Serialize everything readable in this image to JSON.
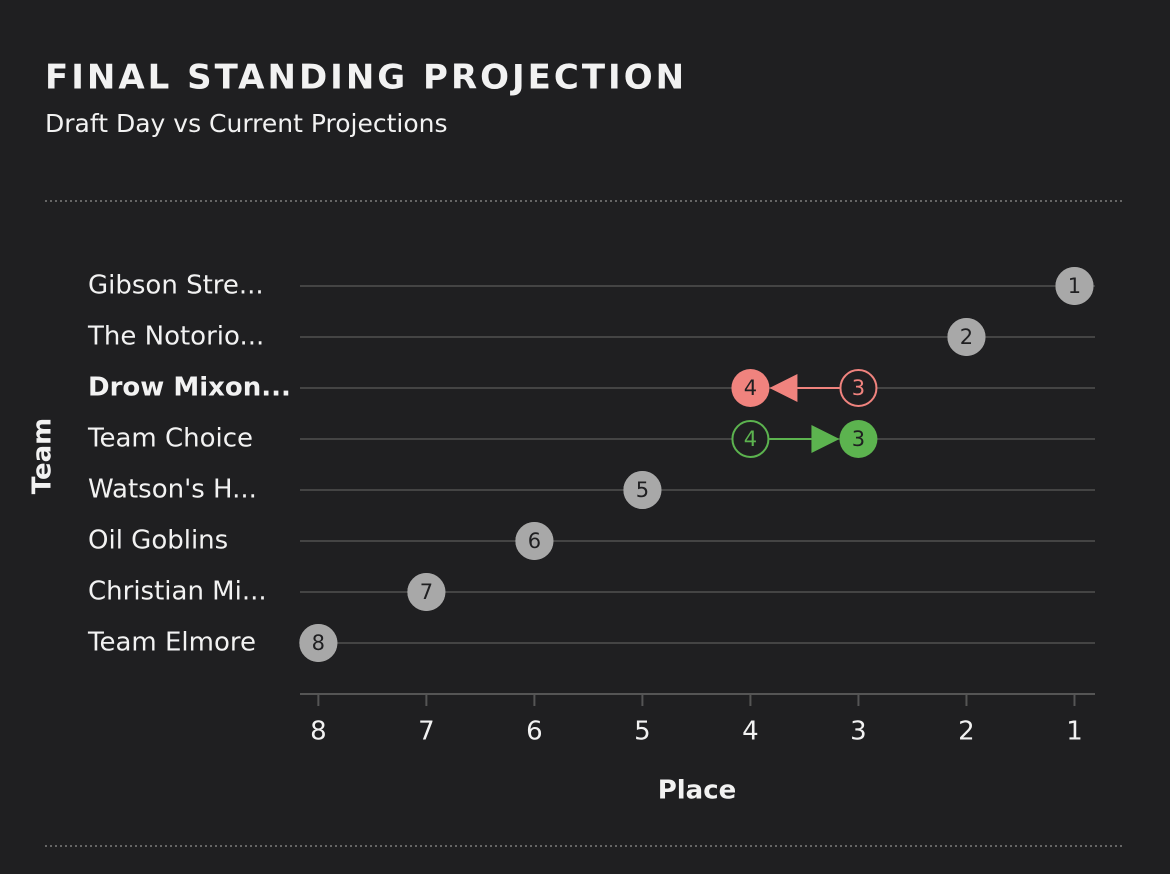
{
  "chart_data": {
    "type": "dumbbell",
    "title": "FINAL STANDING PROJECTION",
    "subtitle": "Draft Day vs Current Projections",
    "x_label": "Place",
    "y_label": "Team",
    "categories": [
      "Gibson Stre...",
      "The Notorio...",
      "Drow Mixon...",
      "Team Choice",
      "Watson's H...",
      "Oil Goblins",
      "Christian Mi...",
      "Team Elmore"
    ],
    "bold_category": 2,
    "series": [
      {
        "values": [
          1,
          2,
          3,
          4,
          5,
          6,
          7,
          8
        ]
      },
      {
        "values": [
          1,
          2,
          4,
          3,
          5,
          6,
          7,
          8
        ]
      }
    ],
    "colors": {
      "improved": "#5cb34f",
      "declined": "#f0837e",
      "unchanged": "#a8a8a8"
    },
    "xlim": [
      8.17,
      0.81
    ],
    "xticks": [
      8,
      7,
      6,
      5,
      4,
      3,
      2,
      1
    ]
  }
}
